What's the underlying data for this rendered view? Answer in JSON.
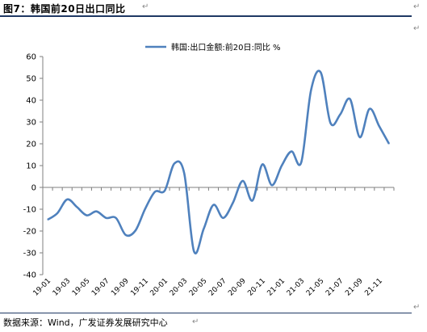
{
  "title": "图7：韩国前20日出口同比",
  "source": "数据来源：Wind，广发证券发展研究中心",
  "para_mark": "↵",
  "colors": {
    "line": "#4f81bd",
    "rule": "#1f3864",
    "axis": "#7f7f7f"
  },
  "chart_data": {
    "type": "line",
    "xlabel": "",
    "ylabel": "",
    "ylim": [
      -40,
      60
    ],
    "yticks": [
      60,
      50,
      40,
      30,
      20,
      10,
      0,
      -10,
      -20,
      -30,
      -40
    ],
    "x_tick_labels": [
      "19-01",
      "19-03",
      "19-05",
      "19-07",
      "19-09",
      "19-11",
      "20-01",
      "20-03",
      "20-05",
      "20-07",
      "20-09",
      "20-11",
      "21-01",
      "21-03",
      "21-05",
      "21-07",
      "21-09",
      "21-11"
    ],
    "x": [
      "19-01",
      "19-02",
      "19-03",
      "19-04",
      "19-05",
      "19-06",
      "19-07",
      "19-08",
      "19-09",
      "19-10",
      "19-11",
      "19-12",
      "20-01",
      "20-02",
      "20-03",
      "20-04",
      "20-05",
      "20-06",
      "20-07",
      "20-08",
      "20-09",
      "20-10",
      "20-11",
      "20-12",
      "21-01",
      "21-02",
      "21-03",
      "21-04",
      "21-05",
      "21-06",
      "21-07",
      "21-08",
      "21-09",
      "21-10",
      "21-11",
      "21-12"
    ],
    "legend_position": "top",
    "series": [
      {
        "name": "韩国:出口金额:前20日:同比 %",
        "values": [
          -14.8,
          -11.8,
          -5.5,
          -9.0,
          -12.8,
          -11.0,
          -14.0,
          -14.0,
          -21.8,
          -19.8,
          -9.8,
          -2.0,
          -1.5,
          11.0,
          6.5,
          -29.3,
          -19.0,
          -8.0,
          -14.0,
          -7.0,
          3.0,
          -6.0,
          10.5,
          1.0,
          10.0,
          16.5,
          11.5,
          44.5,
          52.7,
          29.5,
          33.5,
          40.5,
          23.0,
          36.0,
          28.0,
          20.0
        ]
      }
    ]
  }
}
